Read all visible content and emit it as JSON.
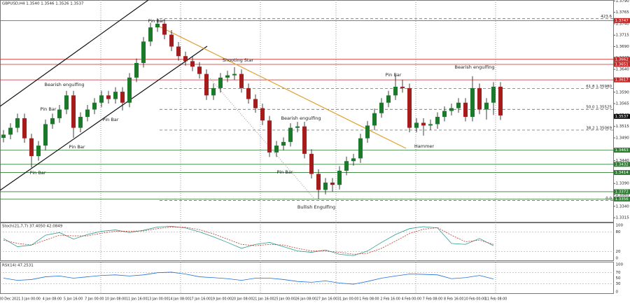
{
  "chart_data": {
    "type": "candlestick",
    "title": "GBPUSD,H4 1.3540 1.3546 1.3526 1.3537",
    "candles": [
      [
        1.349,
        1.3507,
        1.348,
        1.3497
      ],
      [
        1.3497,
        1.3522,
        1.3487,
        1.3512
      ],
      [
        1.3512,
        1.3543,
        1.3502,
        1.3533
      ],
      [
        1.3533,
        1.3543,
        1.3479,
        1.3489
      ],
      [
        1.3489,
        1.3499,
        1.3425,
        1.345
      ],
      [
        1.345,
        1.3483,
        1.344,
        1.3473
      ],
      [
        1.3473,
        1.353,
        1.3463,
        1.352
      ],
      [
        1.352,
        1.3543,
        1.351,
        1.3533
      ],
      [
        1.3533,
        1.3562,
        1.3523,
        1.3552
      ],
      [
        1.3552,
        1.3593,
        1.3542,
        1.3583
      ],
      [
        1.3583,
        1.3593,
        1.349,
        1.3512
      ],
      [
        1.3512,
        1.3546,
        1.3502,
        1.3536
      ],
      [
        1.3536,
        1.3562,
        1.3526,
        1.3552
      ],
      [
        1.3552,
        1.3577,
        1.3542,
        1.3567
      ],
      [
        1.3567,
        1.3593,
        1.3557,
        1.3583
      ],
      [
        1.3583,
        1.3593,
        1.3565,
        1.3575
      ],
      [
        1.3575,
        1.3601,
        1.3565,
        1.3591
      ],
      [
        1.3591,
        1.3601,
        1.355,
        1.3567
      ],
      [
        1.3567,
        1.3632,
        1.3557,
        1.3622
      ],
      [
        1.3622,
        1.3664,
        1.3612,
        1.3654
      ],
      [
        1.3654,
        1.3711,
        1.3644,
        1.3701
      ],
      [
        1.3701,
        1.3742,
        1.3691,
        1.3732
      ],
      [
        1.3732,
        1.3752,
        1.3722,
        1.374
      ],
      [
        1.374,
        1.375,
        1.3706,
        1.3716
      ],
      [
        1.3716,
        1.3726,
        1.368,
        1.369
      ],
      [
        1.369,
        1.37,
        1.3659,
        1.3669
      ],
      [
        1.3669,
        1.3679,
        1.3648,
        1.3658
      ],
      [
        1.3658,
        1.3668,
        1.3636,
        1.3646
      ],
      [
        1.3646,
        1.3656,
        1.362,
        1.363
      ],
      [
        1.363,
        1.364,
        1.3573,
        1.3583
      ],
      [
        1.3583,
        1.3609,
        1.3573,
        1.3599
      ],
      [
        1.3599,
        1.3632,
        1.3589,
        1.3622
      ],
      [
        1.3622,
        1.3637,
        1.3612,
        1.3627
      ],
      [
        1.3627,
        1.3645,
        1.3617,
        1.363
      ],
      [
        1.363,
        1.364,
        1.3589,
        1.3599
      ],
      [
        1.3599,
        1.3609,
        1.3565,
        1.3575
      ],
      [
        1.3575,
        1.3585,
        1.3545,
        1.3555
      ],
      [
        1.3555,
        1.3565,
        1.3518,
        1.3528
      ],
      [
        1.3528,
        1.3538,
        1.3448,
        1.3458
      ],
      [
        1.3458,
        1.3483,
        1.3448,
        1.3473
      ],
      [
        1.3473,
        1.3491,
        1.3463,
        1.3481
      ],
      [
        1.3481,
        1.3522,
        1.3471,
        1.3512
      ],
      [
        1.3512,
        1.3525,
        1.3502,
        1.3515
      ],
      [
        1.3515,
        1.3525,
        1.3445,
        1.3455
      ],
      [
        1.3455,
        1.3465,
        1.3401,
        1.3411
      ],
      [
        1.3411,
        1.3421,
        1.3356,
        1.3376
      ],
      [
        1.3376,
        1.3402,
        1.3366,
        1.3392
      ],
      [
        1.3392,
        1.3402,
        1.3372,
        1.3387
      ],
      [
        1.3387,
        1.3428,
        1.3377,
        1.3418
      ],
      [
        1.3418,
        1.3449,
        1.3408,
        1.3439
      ],
      [
        1.3439,
        1.3455,
        1.3429,
        1.3445
      ],
      [
        1.3445,
        1.3499,
        1.3435,
        1.3489
      ],
      [
        1.3489,
        1.3527,
        1.3479,
        1.3517
      ],
      [
        1.3517,
        1.3554,
        1.3507,
        1.3544
      ],
      [
        1.3544,
        1.3577,
        1.3534,
        1.3567
      ],
      [
        1.3567,
        1.3593,
        1.3557,
        1.3583
      ],
      [
        1.3583,
        1.3627,
        1.3573,
        1.3602
      ],
      [
        1.3602,
        1.3617,
        1.3589,
        1.3599
      ],
      [
        1.3599,
        1.3609,
        1.3502,
        1.3512
      ],
      [
        1.3512,
        1.3533,
        1.3502,
        1.3523
      ],
      [
        1.3523,
        1.3533,
        1.3495,
        1.3517
      ],
      [
        1.3517,
        1.353,
        1.3507,
        1.352
      ],
      [
        1.352,
        1.3546,
        1.351,
        1.3536
      ],
      [
        1.3536,
        1.3559,
        1.3526,
        1.3549
      ],
      [
        1.3549,
        1.3565,
        1.3539,
        1.3555
      ],
      [
        1.3555,
        1.3577,
        1.3545,
        1.3567
      ],
      [
        1.3567,
        1.3577,
        1.3526,
        1.3536
      ],
      [
        1.3536,
        1.3625,
        1.3526,
        1.3599
      ],
      [
        1.3599,
        1.3609,
        1.3542,
        1.3552
      ],
      [
        1.3552,
        1.3577,
        1.353,
        1.3567
      ],
      [
        1.3567,
        1.3612,
        1.354,
        1.3602
      ],
      [
        1.3602,
        1.3612,
        1.3529,
        1.3539
      ]
    ],
    "up_color": "#1b7a2a",
    "down_color": "#a51c1c",
    "ylim": [
      1.3306,
      1.3792
    ],
    "yticks": [
      1.3315,
      {
        "value": 1.334,
        "label": "1.3340"
      },
      1.3365,
      {
        "value": 1.339,
        "label": "1.3390"
      },
      1.3415,
      {
        "value": 1.344,
        "label": "1.3440"
      },
      1.3465,
      {
        "value": 1.349,
        "label": "1.3490"
      },
      1.3515,
      {
        "value": 1.354,
        "label": "1.3540"
      },
      1.3565,
      {
        "value": 1.359,
        "label": "1.3590"
      },
      1.3615,
      {
        "value": 1.364,
        "label": "1.3640"
      },
      1.3665,
      {
        "value": 1.369,
        "label": "1.3690"
      },
      1.3715,
      {
        "value": 1.374,
        "label": "1.3740"
      },
      1.3765,
      {
        "value": 1.379,
        "label": "1.3790"
      }
    ],
    "resistance": [
      1.3747,
      1.3662,
      1.3651,
      1.3617
    ],
    "support": [
      1.3463,
      1.3432,
      1.3414,
      1.3372,
      1.3356
    ],
    "last_price": 1.3537,
    "fib": [
      {
        "label": "423.6",
        "value": 1.3751
      },
      {
        "label": "61.8 1.35980",
        "value": 1.3598
      },
      {
        "label": "50.0 1.35525",
        "value": 1.35525
      },
      {
        "label": "38.2 1.35069",
        "value": 1.35069
      },
      {
        "label": "0.0",
        "value": 1.3353
      }
    ],
    "annotations": [
      "Pin Bar",
      "Pin Bar",
      "Pin Bar",
      "Pin Bar",
      "Pin Bar",
      "Pin Bar",
      "Pin Bar",
      "Bearish engulfing",
      "Shooting Star",
      "Bearish engulfing",
      "Bullish Engulfing",
      "Hammer",
      "Bearish engulfing"
    ],
    "x_labels": [
      "30 Dec 2021",
      "3 Jan 00:00",
      "4 Jan 08:00",
      "5 Jan 16:00",
      "7 Jan 00:00",
      "10 Jan 08:00",
      "11 Jan 16:00",
      "13 Jan 00:00",
      "14 Jan 08:00",
      "17 Jan 16:00",
      "19 Jan 00:00",
      "20 Jan 08:00",
      "21 Jan 16:00",
      "25 Jan 00:00",
      "26 Jan 08:00",
      "27 Jan 16:00",
      "31 Jan 00:00",
      "1 Feb 08:00",
      "2 Feb 16:00",
      "4 Feb 00:00",
      "7 Feb 08:00",
      "8 Feb 16:00",
      "10 Feb 00:00",
      "11 Feb 08:00"
    ],
    "stoch": {
      "title": "Stoch(21,7,7) 37.4050 42.0849",
      "ylim": [
        0,
        100
      ],
      "yticks": [
        0,
        20,
        80,
        100
      ],
      "series": [
        {
          "color": "#2a9d8f",
          "values": [
            60,
            35,
            40,
            70,
            78,
            58,
            72,
            82,
            86,
            78,
            85,
            95,
            97,
            92,
            80,
            65,
            48,
            30,
            42,
            48,
            35,
            22,
            18,
            25,
            12,
            8,
            22,
            48,
            72,
            90,
            96,
            92,
            45,
            42,
            60,
            38
          ]
        },
        {
          "color": "#c0392b",
          "values": [
            55,
            45,
            40,
            55,
            70,
            68,
            68,
            76,
            82,
            82,
            83,
            90,
            95,
            94,
            87,
            74,
            58,
            42,
            38,
            42,
            40,
            30,
            22,
            22,
            18,
            12,
            15,
            30,
            52,
            75,
            88,
            93,
            70,
            50,
            55,
            42
          ]
        }
      ]
    },
    "rsi": {
      "title": "RSI(14) 47.2531",
      "ylim": [
        0,
        100
      ],
      "yticks": [
        0,
        30,
        50,
        70,
        100
      ],
      "color": "#1e6fd9",
      "values": [
        50,
        42,
        45,
        55,
        58,
        50,
        55,
        60,
        62,
        58,
        62,
        70,
        72,
        65,
        55,
        52,
        48,
        42,
        50,
        50,
        45,
        38,
        35,
        40,
        32,
        28,
        38,
        50,
        58,
        65,
        64,
        62,
        48,
        52,
        60,
        47
      ]
    }
  }
}
